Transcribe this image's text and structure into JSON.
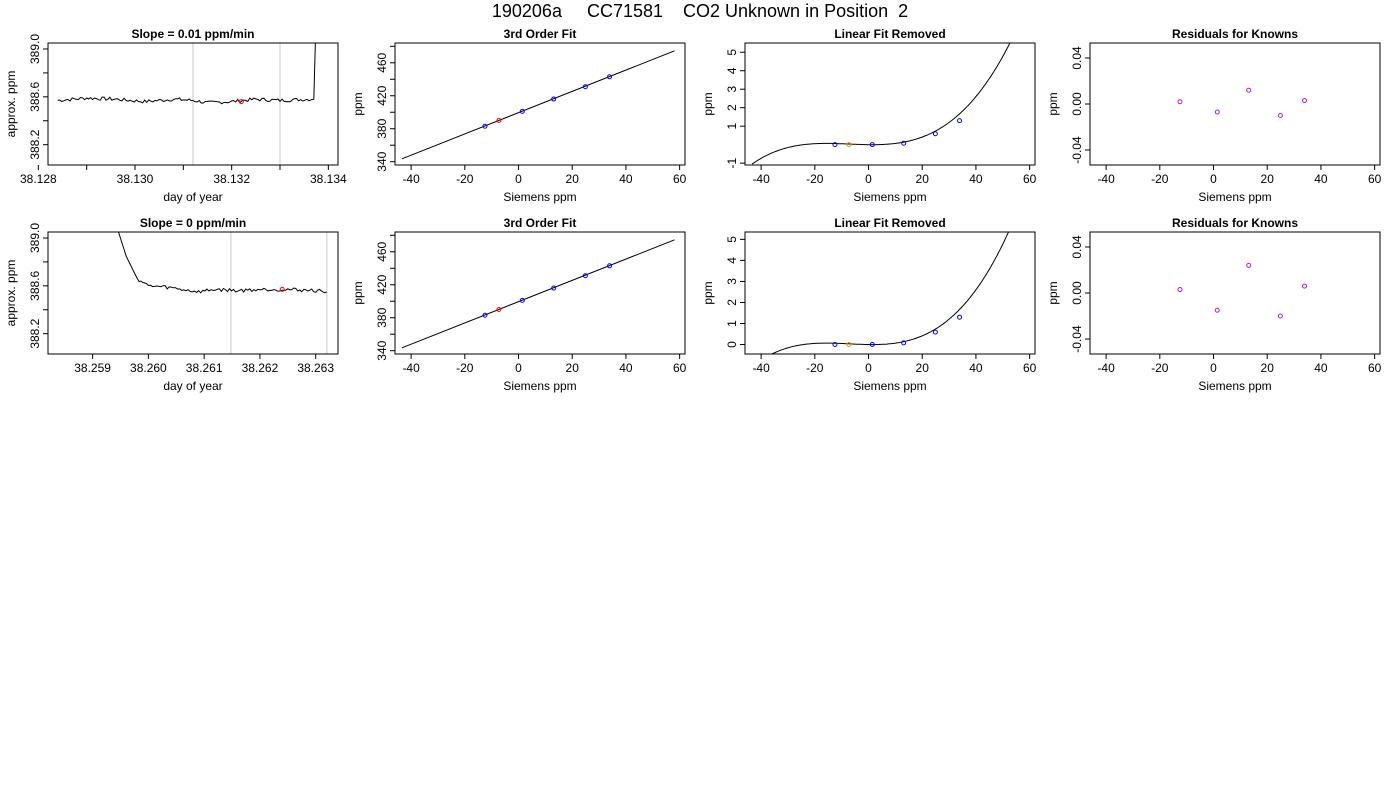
{
  "figure_title": "190206a     CC71581    CO2 Unknown in Position  2",
  "colors": {
    "line": "#000000",
    "gridline": "#c8c8c8",
    "standard": "#0000ff",
    "unknown": "#ff0000",
    "unknown_removed": "#ff8c00",
    "residual": "#a020f0"
  },
  "chart_data": [
    {
      "type": "line",
      "row": 0,
      "col": 0,
      "title": "Slope =  0.01  ppm/min",
      "xlabel": "day of year",
      "ylabel": "approx. ppm",
      "xlim": [
        38.1282,
        38.1342
      ],
      "ylim": [
        388.03,
        389.05
      ],
      "x_ticks": [
        38.128,
        38.129,
        38.13,
        38.131,
        38.132,
        38.133,
        38.134
      ],
      "x_tick_labels": [
        "38.128",
        "",
        "38.130",
        "",
        "38.132",
        "",
        "38.134"
      ],
      "y_ticks": [
        388.2,
        388.4,
        388.6,
        388.8,
        389.0
      ],
      "y_tick_labels": [
        "388.2",
        "",
        "388.6",
        "",
        "389.0"
      ],
      "trace": {
        "x_start": 38.1284,
        "x_end": 38.1338,
        "level": 388.57,
        "series": [
          [
            38.1284,
            388.57
          ],
          [
            38.129,
            388.59
          ],
          [
            38.1296,
            388.58
          ],
          [
            38.1302,
            388.56
          ],
          [
            38.1308,
            388.58
          ],
          [
            38.1312,
            388.57
          ],
          [
            38.1315,
            388.55
          ],
          [
            38.132,
            388.56
          ],
          [
            38.1325,
            388.58
          ],
          [
            38.133,
            388.57
          ],
          [
            38.1336,
            388.58
          ],
          [
            38.1337,
            388.58
          ],
          [
            38.13375,
            389.3
          ]
        ]
      },
      "vlines": [
        38.1312,
        38.133
      ],
      "marker": {
        "x": 38.1322,
        "y": 388.56
      }
    },
    {
      "type": "scatter",
      "row": 0,
      "col": 1,
      "title": "3rd Order Fit",
      "xlabel": "Siemens ppm",
      "ylabel": "ppm",
      "xlim": [
        -46,
        62
      ],
      "ylim": [
        336,
        484
      ],
      "x_ticks": [
        -40,
        -20,
        0,
        20,
        40,
        60
      ],
      "x_tick_labels": [
        "-40",
        "-20",
        "0",
        "20",
        "40",
        "60"
      ],
      "y_ticks": [
        340,
        360,
        380,
        400,
        420,
        440,
        460,
        480
      ],
      "y_tick_labels": [
        "340",
        "",
        "380",
        "",
        "420",
        "",
        "460",
        ""
      ],
      "fit_line": [
        [
          -43.4,
          343.5
        ],
        [
          58.1,
          474.5
        ]
      ],
      "standards": [
        [
          -12.5,
          383
        ],
        [
          1.4,
          401
        ],
        [
          13.1,
          416
        ],
        [
          24.9,
          431
        ],
        [
          33.9,
          443
        ]
      ],
      "unknown": [
        -7.3,
        390
      ]
    },
    {
      "type": "line",
      "row": 0,
      "col": 2,
      "title": "Linear Fit Removed",
      "xlabel": "Siemens ppm",
      "ylabel": "ppm",
      "xlim": [
        -46,
        62
      ],
      "ylim": [
        -1.1,
        5.5
      ],
      "x_ticks": [
        -40,
        -20,
        0,
        20,
        40,
        60
      ],
      "x_tick_labels": [
        "-40",
        "-20",
        "0",
        "20",
        "40",
        "60"
      ],
      "y_ticks": [
        -1,
        1,
        2,
        3,
        4,
        5
      ],
      "y_tick_labels": [
        "-1",
        "1",
        "2",
        "3",
        "4",
        "5"
      ],
      "curve": {
        "x_start": -43.4,
        "x_end": 58.1,
        "a": 2.73e-05,
        "b": 0.000582,
        "c": -0.00193,
        "d": 0.0
      },
      "standards": [
        [
          -12.5,
          0.0
        ],
        [
          1.4,
          0.0
        ],
        [
          13.1,
          0.08
        ],
        [
          24.9,
          0.59
        ],
        [
          33.9,
          1.3
        ]
      ],
      "unknown": [
        -7.3,
        0.0
      ]
    },
    {
      "type": "scatter",
      "row": 0,
      "col": 3,
      "title": "Residuals for Knowns",
      "xlabel": "Siemens ppm",
      "ylabel": "ppm",
      "xlim": [
        -46,
        62
      ],
      "ylim": [
        -0.053,
        0.053
      ],
      "x_ticks": [
        -40,
        -20,
        0,
        20,
        40,
        60
      ],
      "x_tick_labels": [
        "-40",
        "-20",
        "0",
        "20",
        "40",
        "60"
      ],
      "y_ticks": [
        -0.04,
        0.0,
        0.04
      ],
      "y_tick_labels": [
        "-0.04",
        "0.00",
        "0.04"
      ],
      "points": [
        [
          -12.5,
          0.002
        ],
        [
          1.4,
          -0.007
        ],
        [
          13.1,
          0.012
        ],
        [
          24.9,
          -0.01
        ],
        [
          33.9,
          0.003
        ]
      ]
    },
    {
      "type": "line",
      "row": 1,
      "col": 0,
      "title": "Slope =  0  ppm/min",
      "xlabel": "day of year",
      "ylabel": "approx. ppm",
      "xlim": [
        38.2582,
        38.2634
      ],
      "ylim": [
        388.03,
        389.05
      ],
      "x_ticks": [
        38.259,
        38.26,
        38.261,
        38.262,
        38.263
      ],
      "x_tick_labels": [
        "38.259",
        "38.260",
        "38.261",
        "38.262",
        "38.263"
      ],
      "y_ticks": [
        388.2,
        388.4,
        388.6,
        388.8,
        389.0
      ],
      "y_tick_labels": [
        "388.2",
        "",
        "388.6",
        "",
        "389.0"
      ],
      "trace": {
        "x_start": 38.2594,
        "x_end": 38.2632,
        "level": 388.57,
        "series": [
          [
            38.25943,
            389.1
          ],
          [
            38.2596,
            388.85
          ],
          [
            38.2598,
            388.66
          ],
          [
            38.26,
            388.6
          ],
          [
            38.2603,
            388.59
          ],
          [
            38.2606,
            388.57
          ],
          [
            38.2609,
            388.55
          ],
          [
            38.2612,
            388.57
          ],
          [
            38.2616,
            388.56
          ],
          [
            38.262,
            388.57
          ],
          [
            38.2625,
            388.57
          ],
          [
            38.263,
            388.56
          ],
          [
            38.2632,
            388.55
          ]
        ]
      },
      "vlines": [
        38.26148,
        38.2632
      ],
      "marker": {
        "x": 38.2624,
        "y": 388.57
      }
    },
    {
      "type": "scatter",
      "row": 1,
      "col": 1,
      "title": "3rd Order Fit",
      "xlabel": "Siemens ppm",
      "ylabel": "ppm",
      "xlim": [
        -46,
        62
      ],
      "ylim": [
        336,
        484
      ],
      "x_ticks": [
        -40,
        -20,
        0,
        20,
        40,
        60
      ],
      "x_tick_labels": [
        "-40",
        "-20",
        "0",
        "20",
        "40",
        "60"
      ],
      "y_ticks": [
        340,
        360,
        380,
        400,
        420,
        440,
        460,
        480
      ],
      "y_tick_labels": [
        "340",
        "",
        "380",
        "",
        "420",
        "",
        "460",
        ""
      ],
      "fit_line": [
        [
          -43.4,
          343.5
        ],
        [
          58.1,
          474.5
        ]
      ],
      "standards": [
        [
          -12.5,
          383
        ],
        [
          1.4,
          401
        ],
        [
          13.1,
          416
        ],
        [
          24.9,
          431
        ],
        [
          33.9,
          443
        ]
      ],
      "unknown": [
        -7.3,
        390
      ]
    },
    {
      "type": "line",
      "row": 1,
      "col": 2,
      "title": "Linear Fit Removed",
      "xlabel": "Siemens ppm",
      "ylabel": "ppm",
      "xlim": [
        -46,
        62
      ],
      "ylim": [
        -0.45,
        5.35
      ],
      "x_ticks": [
        -40,
        -20,
        0,
        20,
        40,
        60
      ],
      "x_tick_labels": [
        "-40",
        "-20",
        "0",
        "20",
        "40",
        "60"
      ],
      "y_ticks": [
        0,
        1,
        2,
        3,
        4,
        5
      ],
      "y_tick_labels": [
        "0",
        "1",
        "2",
        "3",
        "4",
        "5"
      ],
      "curve": {
        "x_start": -43.4,
        "x_end": 58.1,
        "a": 2.73e-05,
        "b": 0.000582,
        "c": -0.00193,
        "d": 0.0
      },
      "standards": [
        [
          -12.5,
          0.0
        ],
        [
          1.4,
          0.0
        ],
        [
          13.1,
          0.08
        ],
        [
          24.9,
          0.59
        ],
        [
          33.9,
          1.3
        ]
      ],
      "unknown": [
        -7.3,
        0.0
      ]
    },
    {
      "type": "scatter",
      "row": 1,
      "col": 3,
      "title": "Residuals for Knowns",
      "xlabel": "Siemens ppm",
      "ylabel": "ppm",
      "xlim": [
        -46,
        62
      ],
      "ylim": [
        -0.053,
        0.053
      ],
      "x_ticks": [
        -40,
        -20,
        0,
        20,
        40,
        60
      ],
      "x_tick_labels": [
        "-40",
        "-20",
        "0",
        "20",
        "40",
        "60"
      ],
      "y_ticks": [
        -0.04,
        0.0,
        0.04
      ],
      "y_tick_labels": [
        "-0.04",
        "0.00",
        "0.04"
      ],
      "points": [
        [
          -12.5,
          0.003
        ],
        [
          1.4,
          -0.015
        ],
        [
          13.1,
          0.024
        ],
        [
          24.9,
          -0.02
        ],
        [
          33.9,
          0.006
        ]
      ]
    }
  ]
}
